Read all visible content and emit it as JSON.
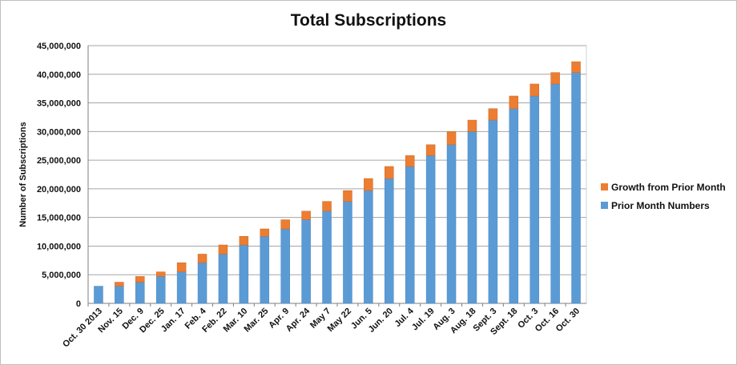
{
  "chart_data": {
    "type": "bar",
    "stacked": true,
    "title": "Total Subscriptions",
    "xlabel": "",
    "ylabel": "Number of Subscriptions",
    "ylim": [
      0,
      45000000
    ],
    "yticks": [
      0,
      5000000,
      10000000,
      15000000,
      20000000,
      25000000,
      30000000,
      35000000,
      40000000,
      45000000
    ],
    "ytick_labels": [
      "0",
      "5,000,000",
      "10,000,000",
      "15,000,000",
      "20,000,000",
      "25,000,000",
      "30,000,000",
      "35,000,000",
      "40,000,000",
      "45,000,000"
    ],
    "grid": true,
    "legend_position": "right",
    "categories": [
      "Oct. 30 2013",
      "Nov. 15",
      "Dec. 9",
      "Dec. 25",
      "Jan. 17",
      "Feb. 4",
      "Feb. 22",
      "Mar. 10",
      "Mar. 25",
      "Apr. 9",
      "Apr. 24",
      "May 7",
      "May 22",
      "Jun. 5",
      "Jun. 20",
      "Jul. 4",
      "Jul. 19",
      "Aug. 3",
      "Aug. 18",
      "Sept. 3",
      "Sept. 18",
      "Oct. 3",
      "Oct. 16",
      "Oct. 30"
    ],
    "series": [
      {
        "name": "Prior Month Numbers",
        "color": "#5b9bd5",
        "values": [
          3000000,
          3000000,
          3700000,
          4700000,
          5500000,
          7100000,
          8600000,
          10200000,
          11700000,
          13000000,
          14600000,
          16100000,
          17800000,
          19700000,
          21800000,
          23900000,
          25800000,
          27700000,
          30000000,
          32000000,
          34000000,
          36200000,
          38300000,
          40300000
        ]
      },
      {
        "name": "Growth from Prior Month",
        "color": "#ed7d31",
        "values": [
          0,
          700000,
          1000000,
          800000,
          1600000,
          1500000,
          1600000,
          1500000,
          1300000,
          1600000,
          1500000,
          1700000,
          1900000,
          2100000,
          2100000,
          1900000,
          1900000,
          2300000,
          2000000,
          2000000,
          2200000,
          2100000,
          2000000,
          1900000
        ]
      }
    ]
  },
  "legend": [
    {
      "label": "Growth from Prior Month",
      "color": "#ed7d31"
    },
    {
      "label": "Prior Month Numbers",
      "color": "#5b9bd5"
    }
  ]
}
